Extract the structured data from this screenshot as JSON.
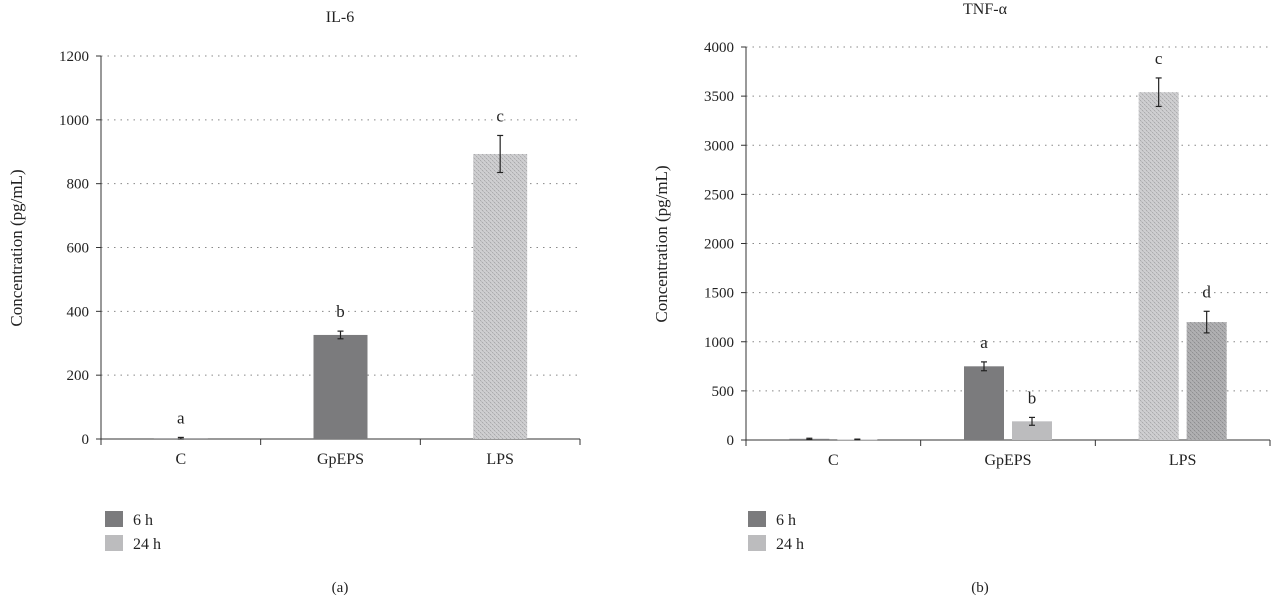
{
  "colors": {
    "h6": "#7b7b7d",
    "h24": "#bcbcbe",
    "lps6": "#c9c9cb",
    "lps24": "#a9a9ab",
    "axis": "#333333",
    "grid": "#888888"
  },
  "chart_data": [
    {
      "type": "bar",
      "title": "IL-6",
      "panel_label": "(a)",
      "ylabel": "Concentration (pg/mL)",
      "xlabel": "",
      "ylim": [
        0,
        1200
      ],
      "yticks": [
        0,
        200,
        400,
        600,
        800,
        1000,
        1200
      ],
      "grid": "dotted horizontal",
      "categories": [
        "C",
        "GpEPS",
        "LPS"
      ],
      "series": [
        {
          "name": "6 h",
          "values": [
            2,
            326,
            893
          ],
          "errors": [
            3,
            12,
            58
          ],
          "letters": [
            "a",
            "b",
            "c"
          ]
        },
        {
          "name": "24 h",
          "values": [
            null,
            null,
            null
          ],
          "errors": [
            null,
            null,
            null
          ],
          "letters": [
            "",
            "",
            ""
          ]
        }
      ],
      "legend": [
        "6 h",
        "24 h"
      ],
      "legend_position": "bottom-left"
    },
    {
      "type": "bar",
      "title": "TNF-α",
      "panel_label": "(b)",
      "ylabel": "Concentration (pg/mL)",
      "xlabel": "",
      "ylim": [
        0,
        4000
      ],
      "yticks": [
        0,
        500,
        1000,
        1500,
        2000,
        2500,
        3000,
        3500,
        4000
      ],
      "grid": "dotted horizontal",
      "categories": [
        "C",
        "GpEPS",
        "LPS"
      ],
      "series": [
        {
          "name": "6 h",
          "values": [
            12,
            750,
            3540
          ],
          "errors": [
            6,
            45,
            145
          ],
          "letters": [
            "",
            "a",
            "c"
          ]
        },
        {
          "name": "24 h",
          "values": [
            5,
            190,
            1200
          ],
          "errors": [
            4,
            40,
            110
          ],
          "letters": [
            "",
            "b",
            "d"
          ]
        }
      ],
      "legend": [
        "6 h",
        "24 h"
      ],
      "legend_position": "bottom-left"
    }
  ]
}
